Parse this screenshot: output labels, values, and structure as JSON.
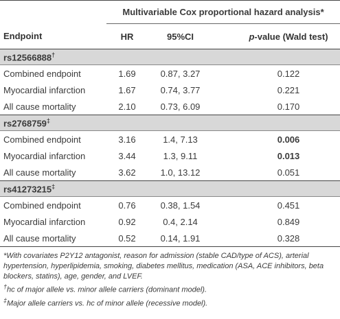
{
  "table": {
    "header": {
      "span_title": "Multivariable Cox proportional hazard analysis*",
      "columns": [
        "Endpoint",
        "HR",
        "95%CI",
        {
          "italic": "p",
          "text": "-value (Wald test)"
        }
      ]
    },
    "groups": [
      {
        "name": "rs12566888",
        "mark": "†",
        "rows": [
          [
            "Combined endpoint",
            "1.69",
            "0.87, 3.27",
            "0.122"
          ],
          [
            "Myocardial infarction",
            "1.67",
            "0.74, 3.77",
            "0.221"
          ],
          [
            "All cause mortality",
            "2.10",
            "0.73, 6.09",
            "0.170"
          ]
        ]
      },
      {
        "name": "rs2768759",
        "mark": "‡",
        "rows": [
          [
            "Combined endpoint",
            "3.16",
            "1.4, 7.13",
            "0.006"
          ],
          [
            "Myocardial infarction",
            "3.44",
            "1.3, 9.11",
            "0.013"
          ],
          [
            "All cause mortality",
            "3.62",
            "1.0, 13.12",
            "0.051"
          ]
        ]
      },
      {
        "name": "rs41273215",
        "mark": "‡",
        "rows": [
          [
            "Combined endpoint",
            "0.76",
            "0.38, 1.54",
            "0.451"
          ],
          [
            "Myocardial infarction",
            "0.92",
            "0.4, 2.14",
            "0.849"
          ],
          [
            "All cause mortality",
            "0.52",
            "0.14, 1.91",
            "0.328"
          ]
        ]
      }
    ]
  },
  "footnotes": [
    {
      "text": "*With covariates P2Y12 antagonist, reason for admission (stable CAD/type of ACS), arterial hypertension, hyperlipidemia, smoking, diabetes mellitus, medication (ASA, ACE inhibitors, beta blockers, statins), age, gender, and LVEF."
    },
    {
      "mark": "†",
      "text": "hc of major allele vs. minor allele carriers (dominant model)."
    },
    {
      "mark": "‡",
      "text": "Major allele carriers vs. hc of minor allele (recessive model)."
    }
  ]
}
